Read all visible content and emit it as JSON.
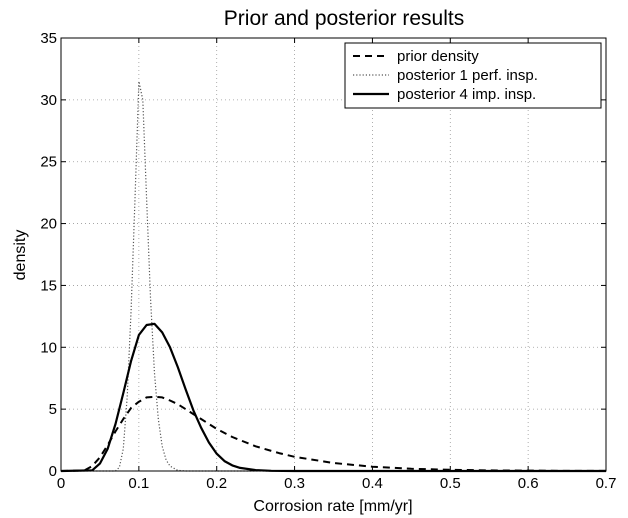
{
  "chart_data": {
    "type": "line",
    "title": "Prior and posterior results",
    "xlabel": "Corrosion rate [mm/yr]",
    "ylabel": "density",
    "xlim": [
      0,
      0.7
    ],
    "ylim": [
      0,
      35
    ],
    "xticks": [
      0,
      0.1,
      0.2,
      0.3,
      0.4,
      0.5,
      0.6,
      0.7
    ],
    "yticks": [
      0,
      5,
      10,
      15,
      20,
      25,
      30,
      35
    ],
    "xtick_labels": [
      "0",
      "0.1",
      "0.2",
      "0.3",
      "0.4",
      "0.5",
      "0.6",
      "0.7"
    ],
    "ytick_labels": [
      "0",
      "5",
      "10",
      "15",
      "20",
      "25",
      "30",
      "35"
    ],
    "grid": true,
    "legend_position": "top-right",
    "series": [
      {
        "name": "prior density",
        "style": "dashed",
        "color": "#000000",
        "x": [
          0,
          0.03,
          0.04,
          0.05,
          0.06,
          0.07,
          0.08,
          0.09,
          0.1,
          0.11,
          0.12,
          0.13,
          0.14,
          0.15,
          0.16,
          0.17,
          0.18,
          0.2,
          0.22,
          0.25,
          0.28,
          0.3,
          0.35,
          0.4,
          0.45,
          0.5,
          0.55,
          0.6,
          0.65,
          0.7
        ],
        "y": [
          0,
          0.05,
          0.4,
          1.1,
          2.1,
          3.2,
          4.2,
          5.1,
          5.6,
          5.95,
          6.0,
          5.95,
          5.7,
          5.4,
          5.0,
          4.6,
          4.2,
          3.4,
          2.75,
          2.0,
          1.45,
          1.15,
          0.65,
          0.35,
          0.18,
          0.1,
          0.05,
          0.03,
          0.01,
          0.005
        ]
      },
      {
        "name": "posterior 1 perf. insp.",
        "style": "dotted",
        "color": "#555555",
        "x": [
          0,
          0.07,
          0.075,
          0.08,
          0.085,
          0.09,
          0.095,
          0.1,
          0.105,
          0.11,
          0.115,
          0.12,
          0.125,
          0.13,
          0.135,
          0.14,
          0.15,
          0.16,
          0.7
        ],
        "y": [
          0,
          0,
          0.3,
          1.8,
          6.0,
          13.0,
          22.0,
          31.5,
          30.0,
          22.0,
          14.0,
          8.0,
          4.2,
          2.0,
          0.9,
          0.4,
          0.05,
          0,
          0
        ]
      },
      {
        "name": "posterior 4 imp. insp.",
        "style": "solid",
        "color": "#000000",
        "x": [
          0,
          0.04,
          0.05,
          0.06,
          0.07,
          0.08,
          0.09,
          0.1,
          0.11,
          0.12,
          0.13,
          0.14,
          0.15,
          0.16,
          0.17,
          0.18,
          0.19,
          0.2,
          0.21,
          0.22,
          0.23,
          0.25,
          0.27,
          0.3,
          0.7
        ],
        "y": [
          0,
          0.05,
          0.6,
          1.8,
          3.8,
          6.3,
          8.9,
          11.0,
          11.8,
          11.9,
          11.2,
          10.0,
          8.4,
          6.6,
          4.9,
          3.5,
          2.3,
          1.4,
          0.8,
          0.45,
          0.25,
          0.07,
          0.02,
          0,
          0
        ]
      }
    ]
  }
}
